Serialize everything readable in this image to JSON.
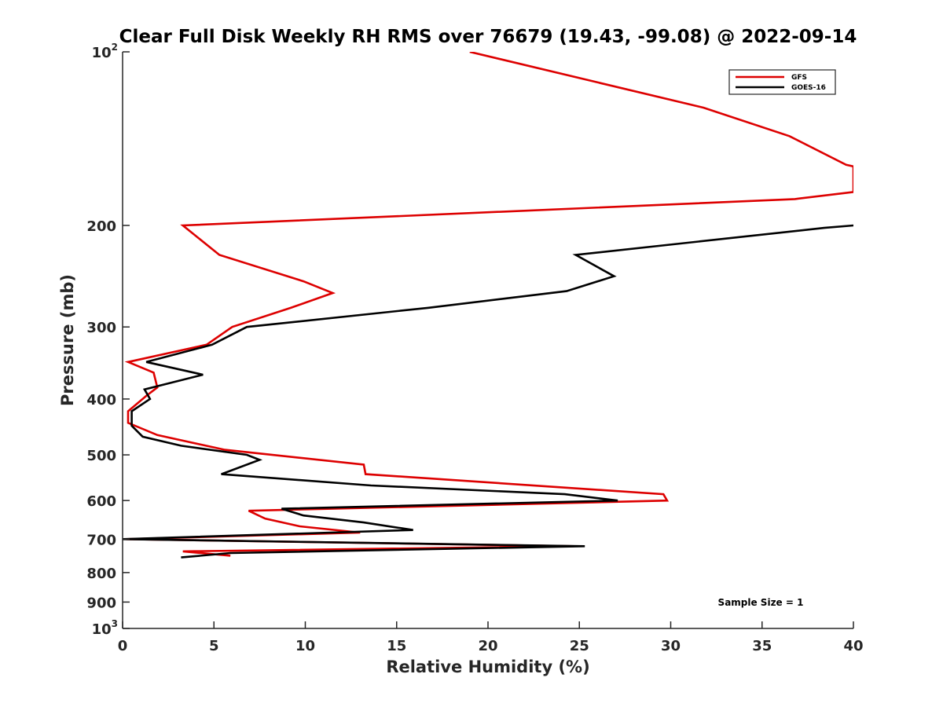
{
  "chart_data": {
    "type": "line",
    "title": "Clear Full Disk Weekly RH RMS over 76679 (19.43, -99.08) @ 2022-09-14",
    "xlabel": "Relative Humidity (%)",
    "ylabel": "Pressure (mb)",
    "xlim": [
      0,
      40
    ],
    "ylim": [
      100,
      1000
    ],
    "y_scale": "log",
    "y_reversed": true,
    "x_ticks": [
      "0",
      "5",
      "10",
      "15",
      "20",
      "25",
      "30",
      "35",
      "40"
    ],
    "y_ticks": [
      {
        "value": 100,
        "label": "10",
        "sup": "2"
      },
      {
        "value": 200,
        "label": "200"
      },
      {
        "value": 300,
        "label": "300"
      },
      {
        "value": 400,
        "label": "400"
      },
      {
        "value": 500,
        "label": "500"
      },
      {
        "value": 600,
        "label": "600"
      },
      {
        "value": 700,
        "label": "700"
      },
      {
        "value": 800,
        "label": "800"
      },
      {
        "value": 900,
        "label": "900"
      },
      {
        "value": 1000,
        "label": "10",
        "sup": "3"
      }
    ],
    "legend": {
      "position": "top-right",
      "entries": [
        "GFS",
        "GOES-16"
      ]
    },
    "annotation": "Sample Size = 1",
    "grid": false,
    "series": [
      {
        "name": "GFS",
        "color": "#dd0000",
        "points": [
          [
            19.0,
            100
          ],
          [
            31.8,
            125
          ],
          [
            36.5,
            140
          ],
          [
            39.6,
            157
          ],
          [
            40.0,
            158
          ],
          [
            40.0,
            175
          ],
          [
            36.8,
            180
          ],
          [
            3.3,
            200
          ],
          [
            5.3,
            225
          ],
          [
            9.9,
            250
          ],
          [
            11.5,
            262
          ],
          [
            9.2,
            278
          ],
          [
            6.0,
            300
          ],
          [
            4.6,
            322
          ],
          [
            0.3,
            345
          ],
          [
            1.7,
            360
          ],
          [
            1.9,
            382
          ],
          [
            1.3,
            395
          ],
          [
            0.3,
            420
          ],
          [
            0.3,
            440
          ],
          [
            1.9,
            462
          ],
          [
            5.6,
            490
          ],
          [
            13.2,
            520
          ],
          [
            13.3,
            540
          ],
          [
            29.6,
            585
          ],
          [
            29.8,
            600
          ],
          [
            6.9,
            625
          ],
          [
            7.8,
            645
          ],
          [
            9.7,
            665
          ],
          [
            13.0,
            682
          ],
          [
            0.2,
            700
          ],
          [
            24.7,
            720
          ],
          [
            3.3,
            735
          ],
          [
            5.9,
            748
          ]
        ]
      },
      {
        "name": "GOES-16",
        "color": "#000000",
        "points": [
          [
            40.0,
            200
          ],
          [
            38.4,
            202
          ],
          [
            24.8,
            225
          ],
          [
            26.9,
            245
          ],
          [
            24.3,
            260
          ],
          [
            16.7,
            278
          ],
          [
            6.8,
            300
          ],
          [
            4.9,
            322
          ],
          [
            1.3,
            345
          ],
          [
            4.4,
            363
          ],
          [
            1.2,
            385
          ],
          [
            1.5,
            400
          ],
          [
            0.5,
            420
          ],
          [
            0.5,
            445
          ],
          [
            1.1,
            465
          ],
          [
            3.2,
            482
          ],
          [
            6.8,
            500
          ],
          [
            7.5,
            510
          ],
          [
            5.4,
            540
          ],
          [
            13.6,
            565
          ],
          [
            24.2,
            585
          ],
          [
            27.1,
            600
          ],
          [
            8.7,
            620
          ],
          [
            9.9,
            637
          ],
          [
            13.2,
            655
          ],
          [
            15.9,
            675
          ],
          [
            0.0,
            700
          ],
          [
            25.3,
            720
          ],
          [
            5.9,
            740
          ],
          [
            3.2,
            753
          ]
        ]
      }
    ]
  }
}
